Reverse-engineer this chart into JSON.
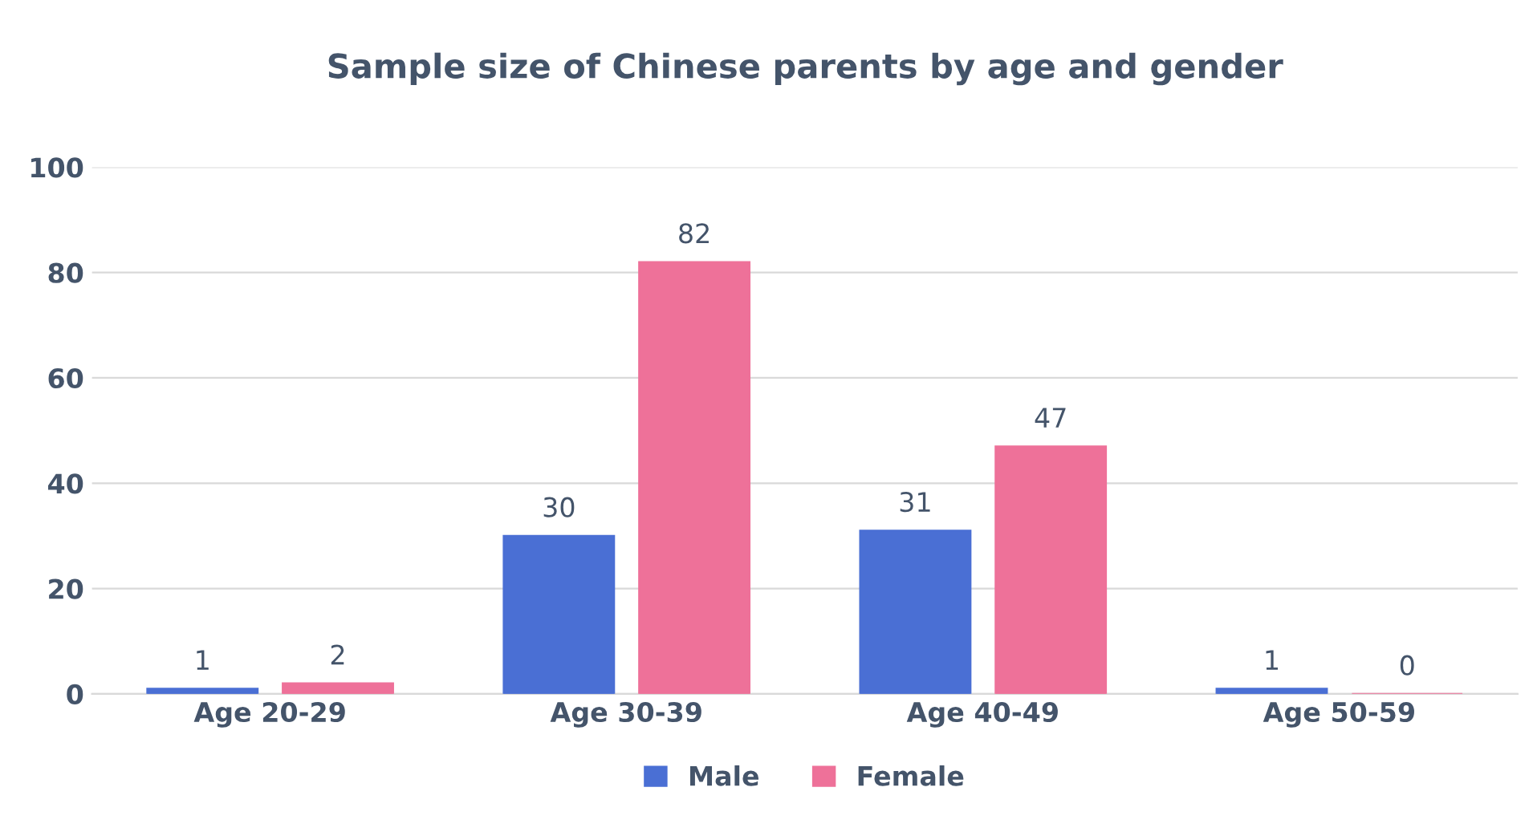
{
  "chart_data": {
    "type": "bar",
    "title": "Sample size of Chinese parents by age and gender",
    "categories": [
      "Age 20-29",
      "Age 30-39",
      "Age 40-49",
      "Age 50-59"
    ],
    "series": [
      {
        "name": "Male",
        "color": "#4a6fd4",
        "values": [
          1,
          30,
          31,
          1
        ]
      },
      {
        "name": "Female",
        "color": "#ee7199",
        "values": [
          2,
          82,
          47,
          0
        ]
      }
    ],
    "ylim": [
      0,
      100
    ],
    "yticks": [
      0,
      20,
      40,
      60,
      80,
      100
    ],
    "grid": "y",
    "legend": "bottom",
    "data_labels": true
  }
}
